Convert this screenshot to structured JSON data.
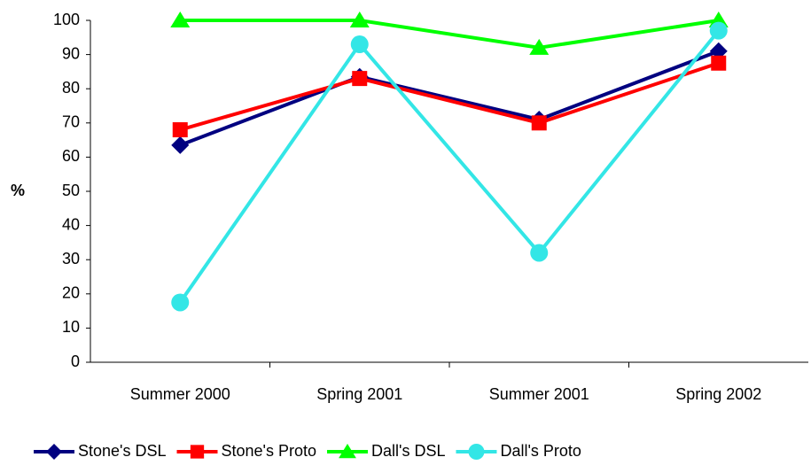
{
  "chart_data": {
    "type": "line",
    "y_label": "%",
    "categories": [
      "Summer 2000",
      "Spring 2001",
      "Summer 2001",
      "Spring 2002"
    ],
    "series": [
      {
        "name": "Stone's DSL",
        "color": "#000080",
        "marker": "diamond",
        "values": [
          63.5,
          83.5,
          71,
          91
        ]
      },
      {
        "name": "Stone's Proto",
        "color": "#ff0000",
        "marker": "square",
        "values": [
          68,
          83,
          70,
          87.5
        ]
      },
      {
        "name": "Dall's DSL",
        "color": "#00ff00",
        "marker": "triangle",
        "values": [
          100,
          100,
          92,
          100
        ]
      },
      {
        "name": "Dall's Proto",
        "color": "#33e6e6",
        "marker": "circle",
        "values": [
          17.5,
          93,
          32,
          97
        ]
      }
    ],
    "ylim": [
      0,
      100
    ],
    "yticks": [
      0,
      10,
      20,
      30,
      40,
      50,
      60,
      70,
      80,
      90,
      100
    ],
    "grid": false
  }
}
